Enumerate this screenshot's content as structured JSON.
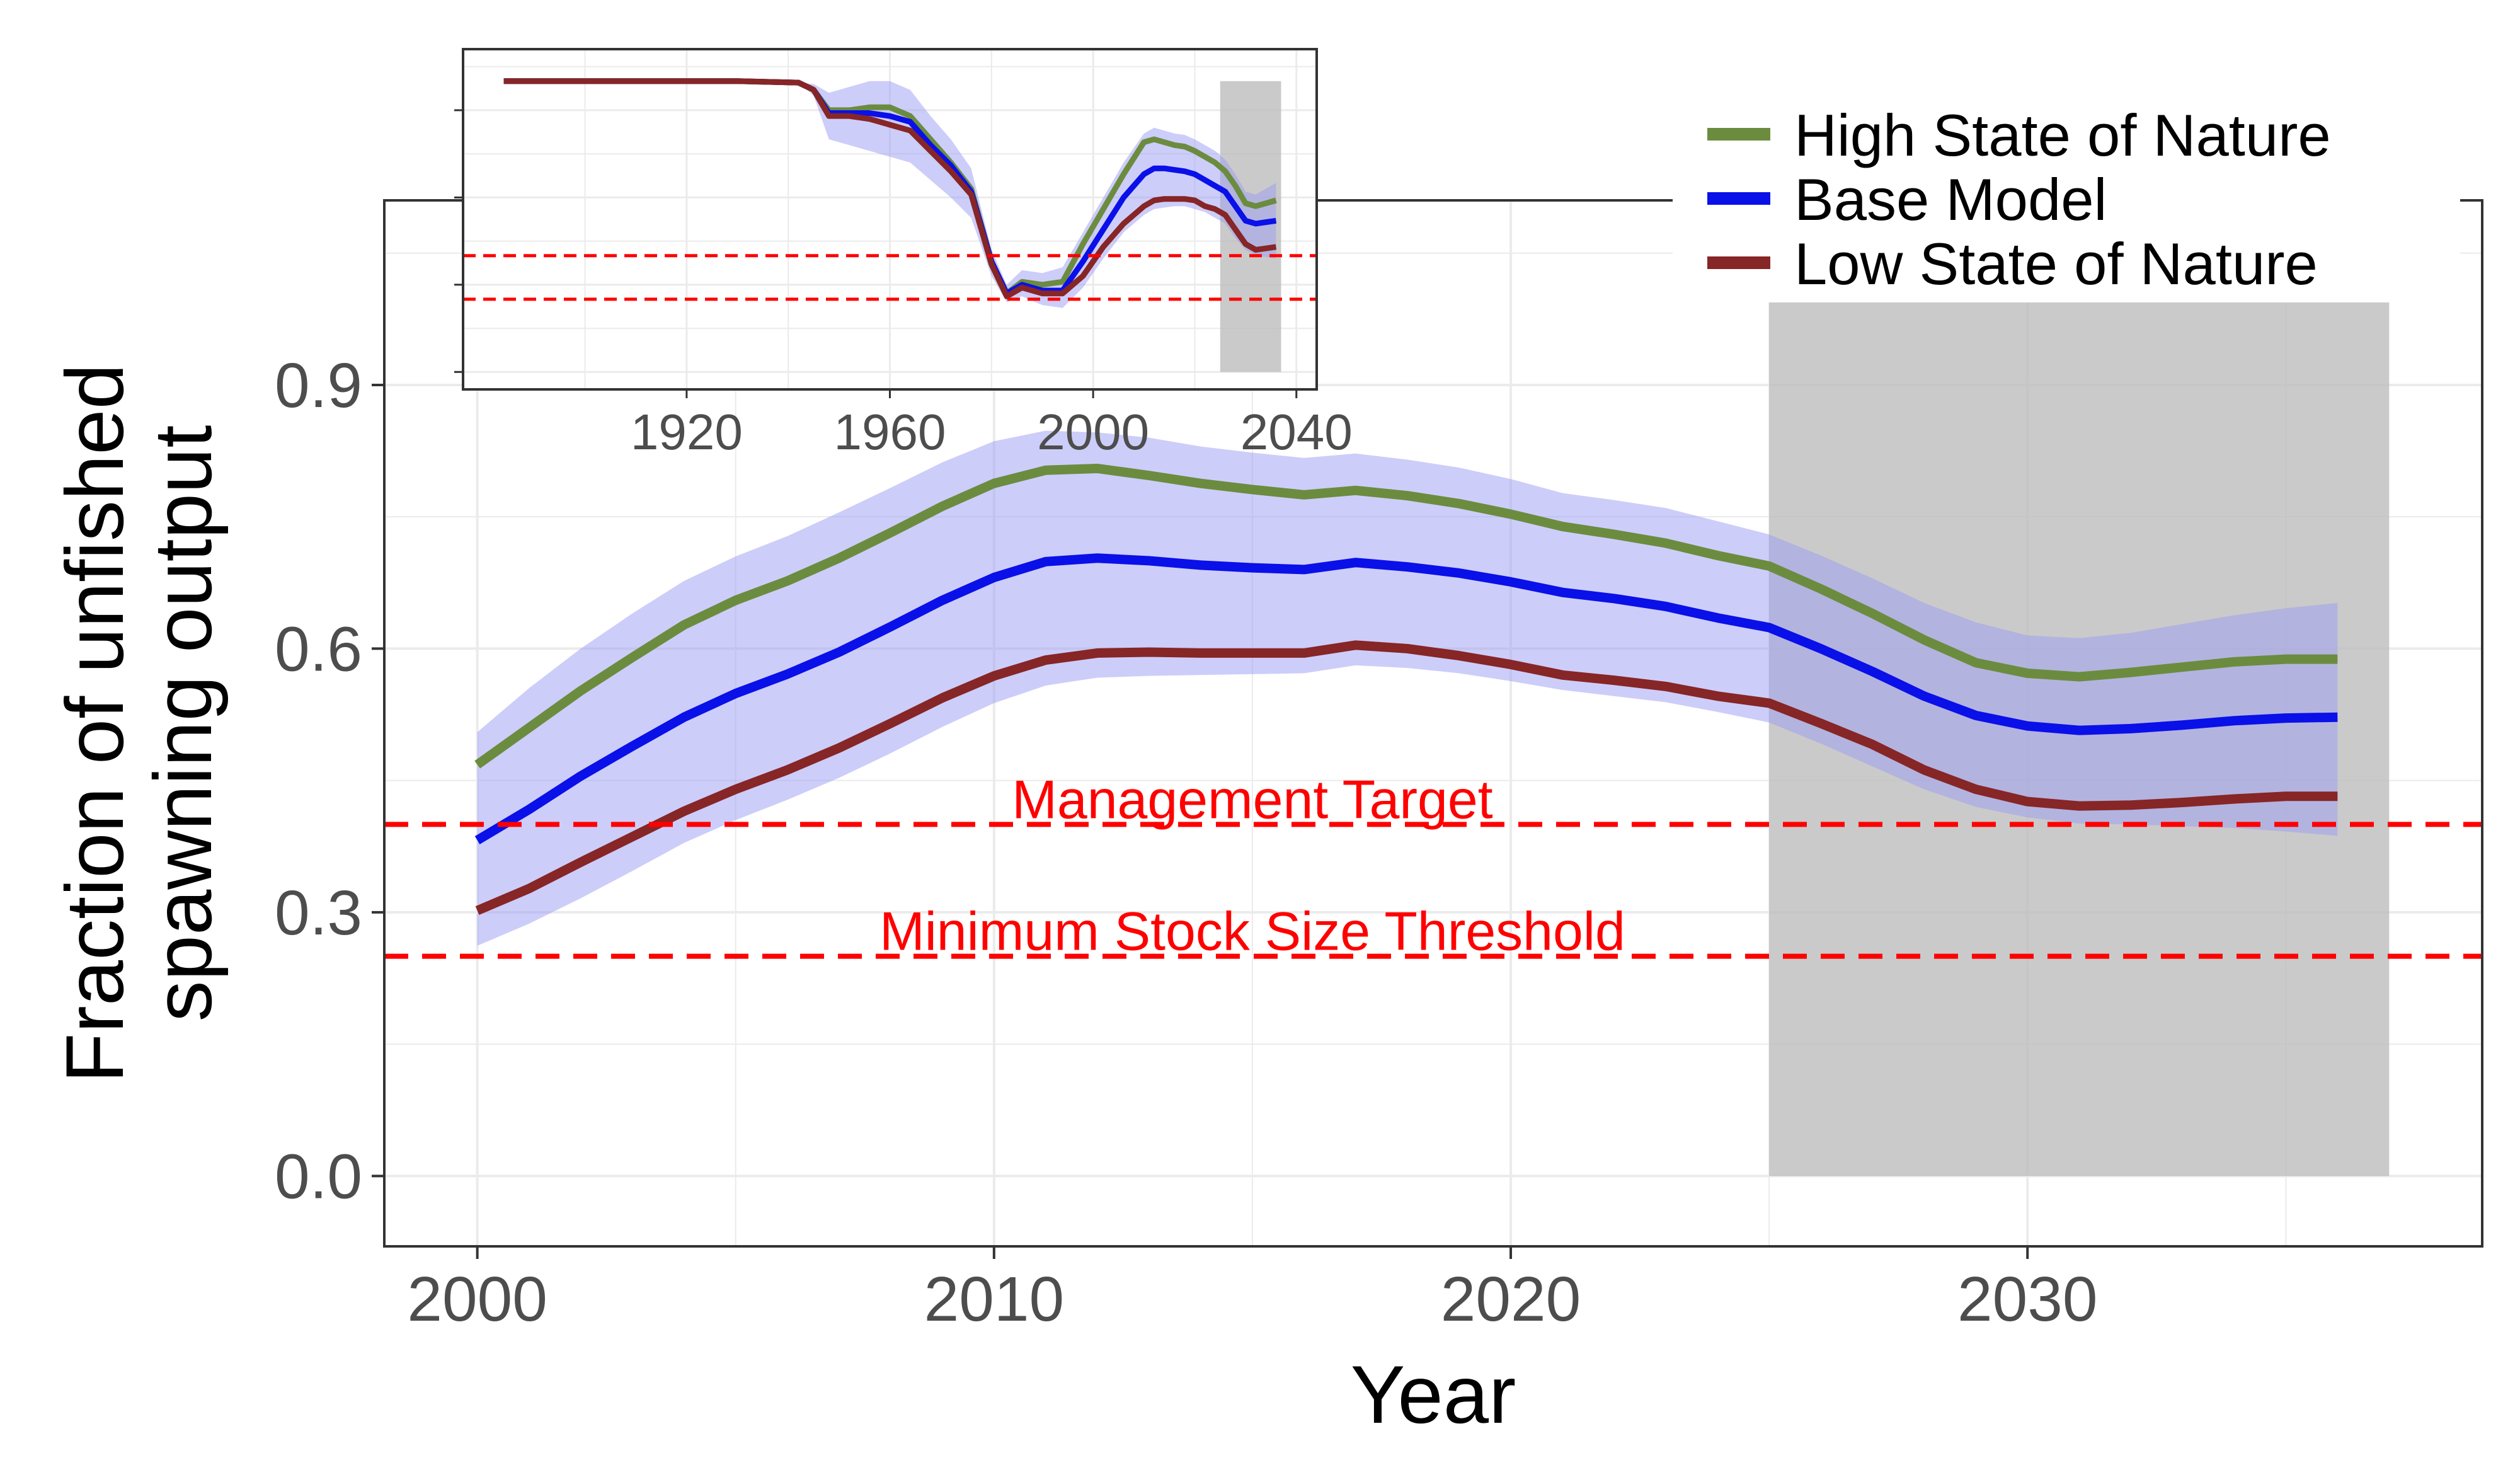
{
  "chart_data": {
    "type": "line",
    "xlabel": "Year",
    "ylabel": [
      "Fraction of unfished",
      "spawning output"
    ],
    "xlim": [
      1998.2,
      2038.8
    ],
    "ylim": [
      -0.08,
      1.11
    ],
    "x_ticks": [
      "2000",
      "2010",
      "2020",
      "2030"
    ],
    "y_ticks": [
      "0.0",
      "0.3",
      "0.6",
      "0.9"
    ],
    "colors": {
      "high": "#6b8c3f",
      "base": "#0a10e8",
      "low": "#862626",
      "band": "#9b9bf5",
      "projection_shade": "#bdbdbd",
      "reference_lines": "#ff0000"
    },
    "projection_period": {
      "start": 2025,
      "end": 2037,
      "ymax": 1.0
    },
    "reference_lines": [
      {
        "label": "Management Target",
        "y": 0.4,
        "label_x": 2015
      },
      {
        "label": "Minimum Stock Size Threshold",
        "y": 0.25,
        "label_x": 2015
      }
    ],
    "legend": {
      "position": "top-right",
      "items": [
        "High State of Nature",
        "Base Model",
        "Low State of Nature"
      ]
    },
    "x": [
      2000,
      2001,
      2002,
      2003,
      2004,
      2005,
      2006,
      2007,
      2008,
      2009,
      2010,
      2011,
      2012,
      2013,
      2014,
      2015,
      2016,
      2017,
      2018,
      2019,
      2020,
      2021,
      2022,
      2023,
      2024,
      2025,
      2026,
      2027,
      2028,
      2029,
      2030,
      2031,
      2032,
      2033,
      2034,
      2035,
      2036
    ],
    "series": [
      {
        "name": "High State of Nature",
        "color_key": "high",
        "values": [
          0.468,
          0.51,
          0.552,
          0.59,
          0.627,
          0.655,
          0.677,
          0.703,
          0.732,
          0.762,
          0.788,
          0.803,
          0.805,
          0.797,
          0.788,
          0.781,
          0.775,
          0.78,
          0.774,
          0.765,
          0.753,
          0.739,
          0.73,
          0.72,
          0.706,
          0.694,
          0.668,
          0.64,
          0.61,
          0.584,
          0.572,
          0.568,
          0.573,
          0.579,
          0.585,
          0.588,
          0.588
        ]
      },
      {
        "name": "Base Model",
        "color_key": "base",
        "values": [
          0.382,
          0.417,
          0.455,
          0.489,
          0.522,
          0.549,
          0.571,
          0.596,
          0.625,
          0.655,
          0.681,
          0.699,
          0.703,
          0.7,
          0.695,
          0.692,
          0.69,
          0.698,
          0.693,
          0.686,
          0.676,
          0.664,
          0.657,
          0.648,
          0.635,
          0.624,
          0.6,
          0.574,
          0.546,
          0.524,
          0.512,
          0.507,
          0.509,
          0.513,
          0.518,
          0.521,
          0.522
        ]
      },
      {
        "name": "Low State of Nature",
        "color_key": "low",
        "values": [
          0.302,
          0.327,
          0.357,
          0.386,
          0.415,
          0.44,
          0.462,
          0.487,
          0.515,
          0.544,
          0.569,
          0.587,
          0.595,
          0.596,
          0.595,
          0.595,
          0.595,
          0.604,
          0.6,
          0.592,
          0.582,
          0.57,
          0.564,
          0.557,
          0.546,
          0.538,
          0.515,
          0.491,
          0.462,
          0.44,
          0.426,
          0.421,
          0.422,
          0.425,
          0.429,
          0.432,
          0.432
        ]
      }
    ],
    "band_upper": [
      0.505,
      0.555,
      0.6,
      0.64,
      0.677,
      0.705,
      0.728,
      0.755,
      0.783,
      0.812,
      0.836,
      0.848,
      0.846,
      0.84,
      0.83,
      0.823,
      0.817,
      0.822,
      0.815,
      0.806,
      0.793,
      0.777,
      0.769,
      0.76,
      0.745,
      0.73,
      0.706,
      0.68,
      0.652,
      0.63,
      0.615,
      0.612,
      0.618,
      0.628,
      0.638,
      0.646,
      0.652
    ],
    "band_lower": [
      0.262,
      0.287,
      0.316,
      0.347,
      0.379,
      0.405,
      0.428,
      0.453,
      0.481,
      0.511,
      0.538,
      0.558,
      0.567,
      0.569,
      0.57,
      0.571,
      0.572,
      0.581,
      0.578,
      0.572,
      0.563,
      0.553,
      0.546,
      0.539,
      0.528,
      0.516,
      0.492,
      0.466,
      0.44,
      0.42,
      0.408,
      0.401,
      0.4,
      0.398,
      0.396,
      0.392,
      0.387
    ],
    "inset": {
      "xlim": [
        1876,
        2044
      ],
      "ylim": [
        -0.06,
        1.11
      ],
      "x_ticks": [
        "1920",
        "1960",
        "2000",
        "2040"
      ],
      "projection_period": {
        "start": 2025,
        "end": 2037
      },
      "reference_lines": [
        0.4,
        0.25
      ],
      "x": [
        1884,
        1910,
        1930,
        1942,
        1945,
        1948,
        1952,
        1956,
        1960,
        1964,
        1968,
        1972,
        1976,
        1980,
        1983,
        1986,
        1990,
        1994,
        1998,
        2002,
        2006,
        2010,
        2012,
        2014,
        2016,
        2018,
        2020,
        2022,
        2024,
        2026,
        2028,
        2030,
        2032,
        2034,
        2036
      ],
      "series": [
        {
          "name": "High State of Nature",
          "color_key": "high",
          "values": [
            1.0,
            1.0,
            1.0,
            0.995,
            0.97,
            0.9,
            0.9,
            0.91,
            0.91,
            0.88,
            0.8,
            0.72,
            0.63,
            0.38,
            0.27,
            0.31,
            0.3,
            0.31,
            0.44,
            0.56,
            0.68,
            0.79,
            0.8,
            0.79,
            0.78,
            0.775,
            0.76,
            0.74,
            0.72,
            0.69,
            0.64,
            0.58,
            0.57,
            0.58,
            0.59
          ]
        },
        {
          "name": "Base Model",
          "color_key": "base",
          "values": [
            1.0,
            1.0,
            1.0,
            0.995,
            0.97,
            0.89,
            0.89,
            0.89,
            0.88,
            0.86,
            0.78,
            0.71,
            0.62,
            0.38,
            0.27,
            0.3,
            0.28,
            0.28,
            0.38,
            0.49,
            0.6,
            0.68,
            0.7,
            0.7,
            0.695,
            0.69,
            0.68,
            0.66,
            0.64,
            0.62,
            0.57,
            0.52,
            0.51,
            0.515,
            0.52
          ]
        },
        {
          "name": "Low State of Nature",
          "color_key": "low",
          "values": [
            1.0,
            1.0,
            1.0,
            0.995,
            0.97,
            0.88,
            0.88,
            0.87,
            0.85,
            0.83,
            0.76,
            0.69,
            0.61,
            0.37,
            0.26,
            0.29,
            0.27,
            0.27,
            0.33,
            0.43,
            0.51,
            0.57,
            0.59,
            0.595,
            0.595,
            0.595,
            0.59,
            0.57,
            0.56,
            0.54,
            0.49,
            0.44,
            0.42,
            0.425,
            0.43
          ]
        }
      ],
      "band_upper": [
        1.0,
        1.0,
        1.0,
        0.995,
        0.99,
        0.96,
        0.98,
        1.0,
        1.0,
        0.97,
        0.88,
        0.8,
        0.7,
        0.42,
        0.3,
        0.35,
        0.34,
        0.36,
        0.48,
        0.6,
        0.72,
        0.82,
        0.84,
        0.83,
        0.82,
        0.815,
        0.8,
        0.78,
        0.76,
        0.73,
        0.68,
        0.62,
        0.61,
        0.63,
        0.65
      ],
      "band_lower": [
        1.0,
        1.0,
        1.0,
        0.995,
        0.95,
        0.8,
        0.78,
        0.76,
        0.74,
        0.72,
        0.66,
        0.6,
        0.53,
        0.33,
        0.24,
        0.26,
        0.23,
        0.22,
        0.29,
        0.39,
        0.48,
        0.54,
        0.56,
        0.565,
        0.57,
        0.57,
        0.56,
        0.55,
        0.53,
        0.51,
        0.46,
        0.42,
        0.4,
        0.395,
        0.39
      ]
    }
  }
}
